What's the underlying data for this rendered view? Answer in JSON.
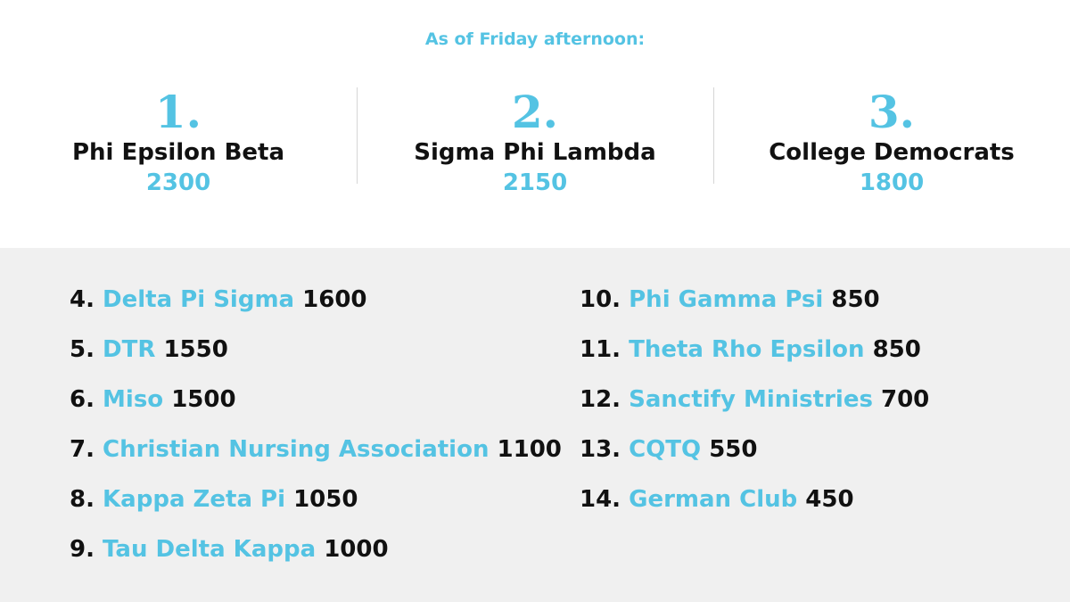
{
  "header": {
    "subtitle": "As of Friday afternoon:"
  },
  "podium": [
    {
      "rank": "1.",
      "name": "Phi Epsilon Beta",
      "score": "2300"
    },
    {
      "rank": "2.",
      "name": "Sigma Phi Lambda",
      "score": "2150"
    },
    {
      "rank": "3.",
      "name": "College Democrats",
      "score": "1800"
    }
  ],
  "standings": {
    "left": [
      {
        "num": "4.",
        "org": "Delta Pi Sigma",
        "pts": "1600"
      },
      {
        "num": "5.",
        "org": "DTR",
        "pts": "1550"
      },
      {
        "num": "6.",
        "org": "Miso",
        "pts": "1500"
      },
      {
        "num": "7.",
        "org": "Christian Nursing Association",
        "pts": "1100"
      },
      {
        "num": "8.",
        "org": "Kappa Zeta Pi",
        "pts": "1050"
      },
      {
        "num": "9.",
        "org": "Tau Delta Kappa",
        "pts": "1000"
      }
    ],
    "right": [
      {
        "num": "10.",
        "org": "Phi Gamma Psi",
        "pts": "850"
      },
      {
        "num": "11.",
        "org": "Theta Rho Epsilon",
        "pts": "850"
      },
      {
        "num": "12.",
        "org": "Sanctify Ministries",
        "pts": "700"
      },
      {
        "num": "13.",
        "org": "CQTQ",
        "pts": "550"
      },
      {
        "num": "14.",
        "org": "German Club",
        "pts": "450"
      }
    ]
  },
  "colors": {
    "accent": "#54c3e3",
    "text": "#111111",
    "panel": "#f0f0f0"
  }
}
